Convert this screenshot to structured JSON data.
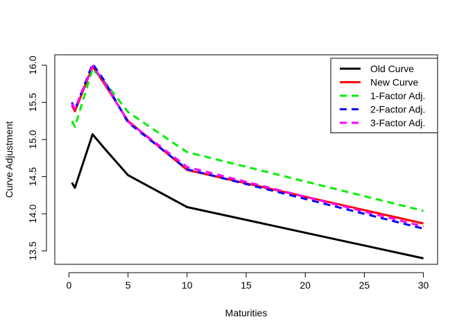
{
  "chart_data": {
    "type": "line",
    "title": "",
    "xlabel": "Maturities",
    "ylabel": "Curve Adjustment",
    "xlim": [
      -1.2,
      31.2
    ],
    "ylim": [
      13.32,
      16.14
    ],
    "xticks": [
      0,
      5,
      10,
      15,
      20,
      25,
      30
    ],
    "yticks": [
      13.5,
      14.0,
      14.5,
      15.0,
      15.5,
      16.0
    ],
    "grid": false,
    "legend_position": "top-right",
    "x": [
      0.25,
      0.5,
      2,
      3,
      5,
      10,
      30
    ],
    "series": [
      {
        "name": "Old Curve",
        "color": "#000000",
        "dash": "solid",
        "values": [
          14.42,
          14.35,
          15.07,
          14.88,
          14.52,
          14.09,
          13.4
        ]
      },
      {
        "name": "New Curve",
        "color": "#ff0000",
        "dash": "solid",
        "values": [
          15.46,
          15.38,
          15.98,
          15.75,
          15.25,
          14.59,
          13.87
        ]
      },
      {
        "name": "1-Factor Adj.",
        "color": "#00ee00",
        "dash": "dashed",
        "values": [
          15.25,
          15.17,
          15.95,
          15.78,
          15.37,
          14.83,
          14.04
        ]
      },
      {
        "name": "2-Factor Adj.",
        "color": "#0000ff",
        "dash": "dashed",
        "values": [
          15.5,
          15.4,
          16.02,
          15.79,
          15.23,
          14.6,
          13.8
        ]
      },
      {
        "name": "3-Factor Adj.",
        "color": "#ff00ff",
        "dash": "dashed",
        "values": [
          15.48,
          15.41,
          15.99,
          15.77,
          15.24,
          14.63,
          13.83
        ]
      }
    ]
  }
}
